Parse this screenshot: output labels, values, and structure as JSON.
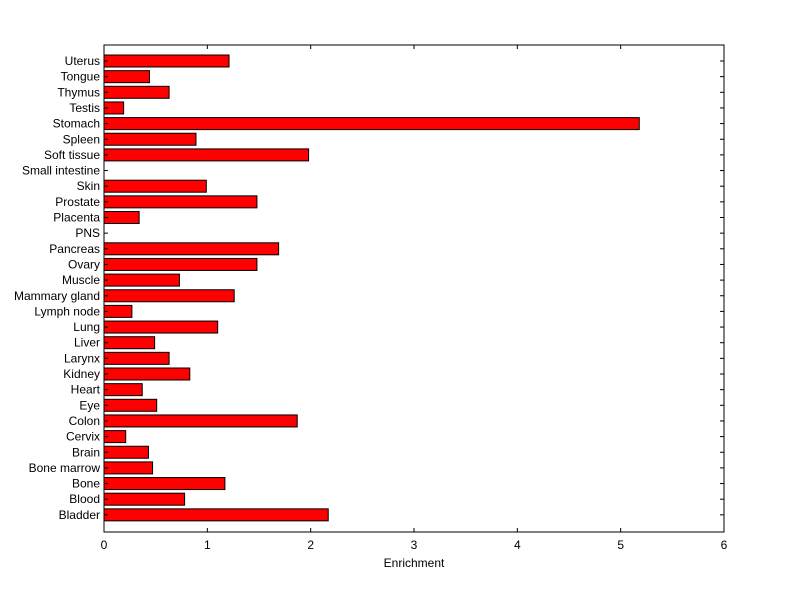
{
  "chart_data": {
    "type": "bar",
    "orientation": "horizontal",
    "xlabel": "Enrichment",
    "ylabel": "",
    "title": "",
    "xlim": [
      0,
      6
    ],
    "xticks": [
      "0",
      "1",
      "2",
      "3",
      "4",
      "5",
      "6"
    ],
    "grid": false,
    "legend": "none",
    "bar_color": "#ff0000",
    "bar_edge_color": "#000000",
    "categories": [
      "Uterus",
      "Tongue",
      "Thymus",
      "Testis",
      "Stomach",
      "Spleen",
      "Soft tissue",
      "Small intestine",
      "Skin",
      "Prostate",
      "Placenta",
      "PNS",
      "Pancreas",
      "Ovary",
      "Muscle",
      "Mammary gland",
      "Lymph node",
      "Lung",
      "Liver",
      "Larynx",
      "Kidney",
      "Heart",
      "Eye",
      "Colon",
      "Cervix",
      "Brain",
      "Bone marrow",
      "Bone",
      "Blood",
      "Bladder"
    ],
    "values": [
      1.21,
      0.44,
      0.63,
      0.19,
      5.18,
      0.89,
      1.98,
      0.0,
      0.99,
      1.48,
      0.34,
      0.0,
      1.69,
      1.48,
      0.73,
      1.26,
      0.27,
      1.1,
      0.49,
      0.63,
      0.83,
      0.37,
      0.51,
      1.87,
      0.21,
      0.43,
      0.47,
      1.17,
      0.78,
      2.17
    ]
  }
}
